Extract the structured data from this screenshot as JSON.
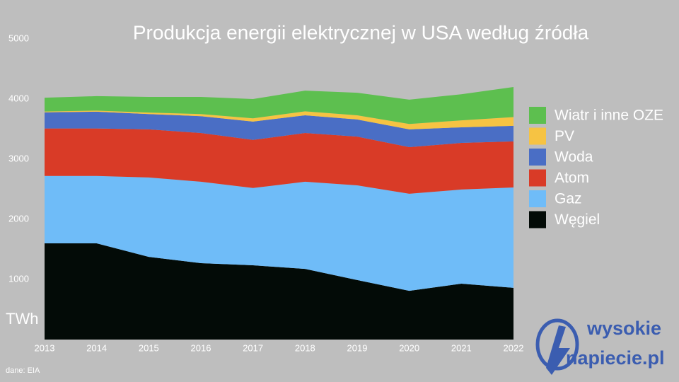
{
  "chart_data": {
    "type": "stacked_area",
    "title": "Produkcja energii elektrycznej w USA według źródła",
    "y_label": "TWh",
    "source": "dane: EIA",
    "logo": {
      "line1": "wysokie",
      "line2": "napiecie.pl"
    },
    "categories": [
      "2013",
      "2014",
      "2015",
      "2016",
      "2017",
      "2018",
      "2019",
      "2020",
      "2021",
      "2022"
    ],
    "ylim": [
      0,
      5000
    ],
    "yticks": [
      1000,
      2000,
      3000,
      4000,
      5000
    ],
    "series": [
      {
        "name": "Węgiel",
        "color": "#030b07",
        "values": [
          1600,
          1600,
          1375,
          1270,
          1235,
          1175,
          990,
          810,
          930,
          860
        ]
      },
      {
        "name": "Gaz",
        "color": "#6fbcf8",
        "values": [
          1120,
          1120,
          1320,
          1355,
          1285,
          1450,
          1575,
          1615,
          1565,
          1670
        ]
      },
      {
        "name": "Atom",
        "color": "#d93b27",
        "values": [
          790,
          790,
          800,
          810,
          800,
          810,
          810,
          775,
          775,
          765
        ]
      },
      {
        "name": "Woda",
        "color": "#4a6ec5",
        "values": [
          270,
          280,
          255,
          280,
          305,
          295,
          285,
          295,
          260,
          260
        ]
      },
      {
        "name": "PV",
        "color": "#f6c343",
        "values": [
          12,
          18,
          25,
          35,
          55,
          65,
          70,
          90,
          115,
          145
        ]
      },
      {
        "name": "Wiatr i inne OZE",
        "color": "#5dbf4f",
        "values": [
          230,
          240,
          260,
          285,
          320,
          345,
          375,
          405,
          435,
          500
        ]
      }
    ]
  }
}
